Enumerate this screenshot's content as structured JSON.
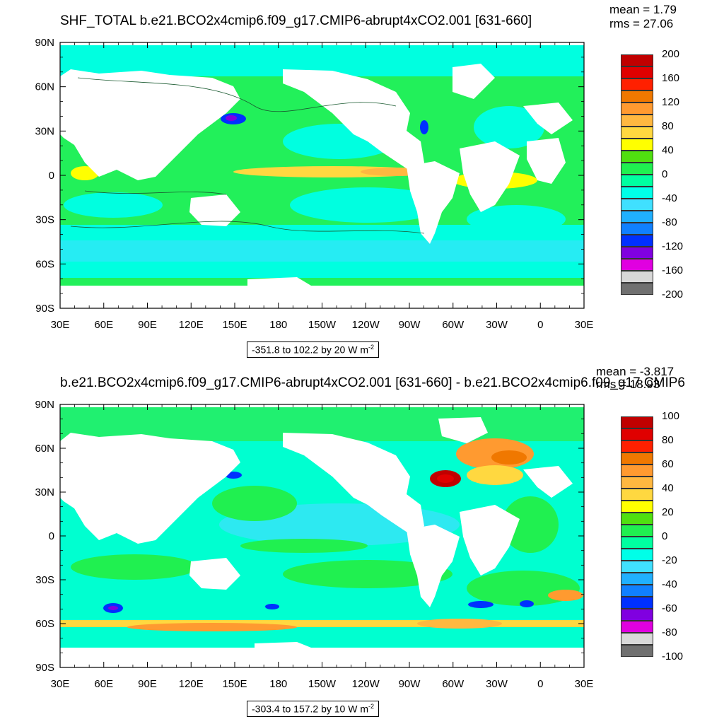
{
  "panels": [
    {
      "title": "SHF_TOTAL b.e21.BCO2x4cmip6.f09_g17.CMIP6-abrupt4xCO2.001 [631-660]",
      "mean_text": "mean = 1.79",
      "rms_text": "rms = 27.06",
      "range_text": "-351.8 to 102.2 by 20  W m",
      "range_sup": "-2",
      "legend_labels": [
        "200",
        "160",
        "120",
        "80",
        "40",
        "0",
        "-40",
        "-80",
        "-120",
        "-160",
        "-200"
      ],
      "legend_colors": [
        "#c00000",
        "#e00000",
        "#ff2000",
        "#f07800",
        "#ff9a30",
        "#ffb840",
        "#ffd840",
        "#ffff00",
        "#50e010",
        "#20f050",
        "#00ffa0",
        "#00ffe8",
        "#40e0ff",
        "#20b0ff",
        "#1080ff",
        "#0030ff",
        "#8000e0",
        "#e000e0",
        "#d8d8d8",
        "#707070"
      ]
    },
    {
      "title": "b.e21.BCO2x4cmip6.f09_g17.CMIP6-abrupt4xCO2.001 [631-660] - b.e21.BCO2x4cmip6.f09_g17.CMIP6",
      "mean_text": "mean = -3.817",
      "rms_text": "rms = 18.93",
      "range_text": "-303.4 to 157.2 by 10  W m",
      "range_sup": "-2",
      "legend_labels": [
        "100",
        "80",
        "60",
        "40",
        "20",
        "0",
        "-20",
        "-40",
        "-60",
        "-80",
        "-100"
      ],
      "legend_colors": [
        "#c00000",
        "#e00000",
        "#ff2000",
        "#f07800",
        "#ff9a30",
        "#ffb840",
        "#ffd840",
        "#ffff00",
        "#50e010",
        "#20f050",
        "#00ffa0",
        "#00ffe8",
        "#40e0ff",
        "#20b0ff",
        "#1080ff",
        "#0030ff",
        "#8000e0",
        "#e000e0",
        "#d8d8d8",
        "#707070"
      ]
    }
  ],
  "axes": {
    "lon_labels": [
      "30E",
      "60E",
      "90E",
      "120E",
      "150E",
      "180",
      "150W",
      "120W",
      "90W",
      "60W",
      "30W",
      "0",
      "30E"
    ],
    "lat_labels": [
      "90N",
      "60N",
      "30N",
      "0",
      "30S",
      "60S",
      "90S"
    ]
  }
}
